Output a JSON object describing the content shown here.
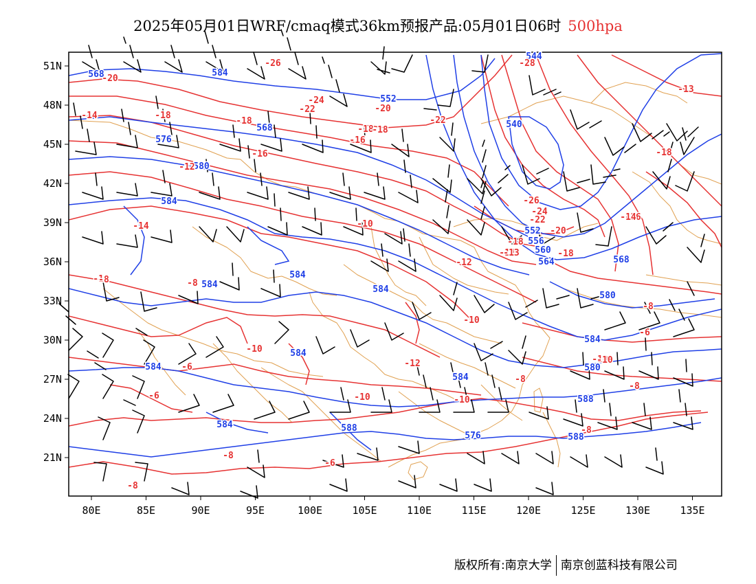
{
  "header": {
    "title": "2025年05月01日WRF/cmaq模式36km预报产品:05月01日06时",
    "level": "500hpa",
    "level_color": "#e63232"
  },
  "footer": {
    "copyright": "版权所有:南京大学",
    "company": "南京创蓝科技有限公司"
  },
  "map": {
    "lon_labels": [
      "80E",
      "85E",
      "90E",
      "95E",
      "100E",
      "105E",
      "110E",
      "115E",
      "120E",
      "125E",
      "130E",
      "135E"
    ],
    "lat_labels": [
      "51N",
      "48N",
      "45N",
      "42N",
      "39N",
      "36N",
      "33N",
      "30N",
      "27N",
      "24N",
      "21N"
    ],
    "height_contour_color": "#1f3fe6",
    "temperature_contour_color": "#e63232",
    "border_color": "#e0a050",
    "wind_barb_color": "#000000",
    "height_labels": [
      "568",
      "584",
      "552",
      "568",
      "576",
      "580",
      "584",
      "544",
      "540",
      "552",
      "556",
      "560",
      "564",
      "568",
      "584",
      "584",
      "584",
      "584",
      "584",
      "584",
      "584",
      "588",
      "588",
      "576",
      "580",
      "584",
      "580",
      "588"
    ],
    "temperature_labels": [
      "-20",
      "-26",
      "-24",
      "-22",
      "-20",
      "-18",
      "-16",
      "-14",
      "-18",
      "-18",
      "-16",
      "-12",
      "-14",
      "-10",
      "-8",
      "-10",
      "-12",
      "-10",
      "-12",
      "-10",
      "-10",
      "-8",
      "-10",
      "-6",
      "-6",
      "-8",
      "-6",
      "-8",
      "-10",
      "-8",
      "-28",
      "-22",
      "-18",
      "-26",
      "-24",
      "-22",
      "-20",
      "-18",
      "-14",
      "-18",
      "-16",
      "-18",
      "-13",
      "-14",
      "-13",
      "-10",
      "-8",
      "-8",
      "-6",
      "-8"
    ]
  }
}
